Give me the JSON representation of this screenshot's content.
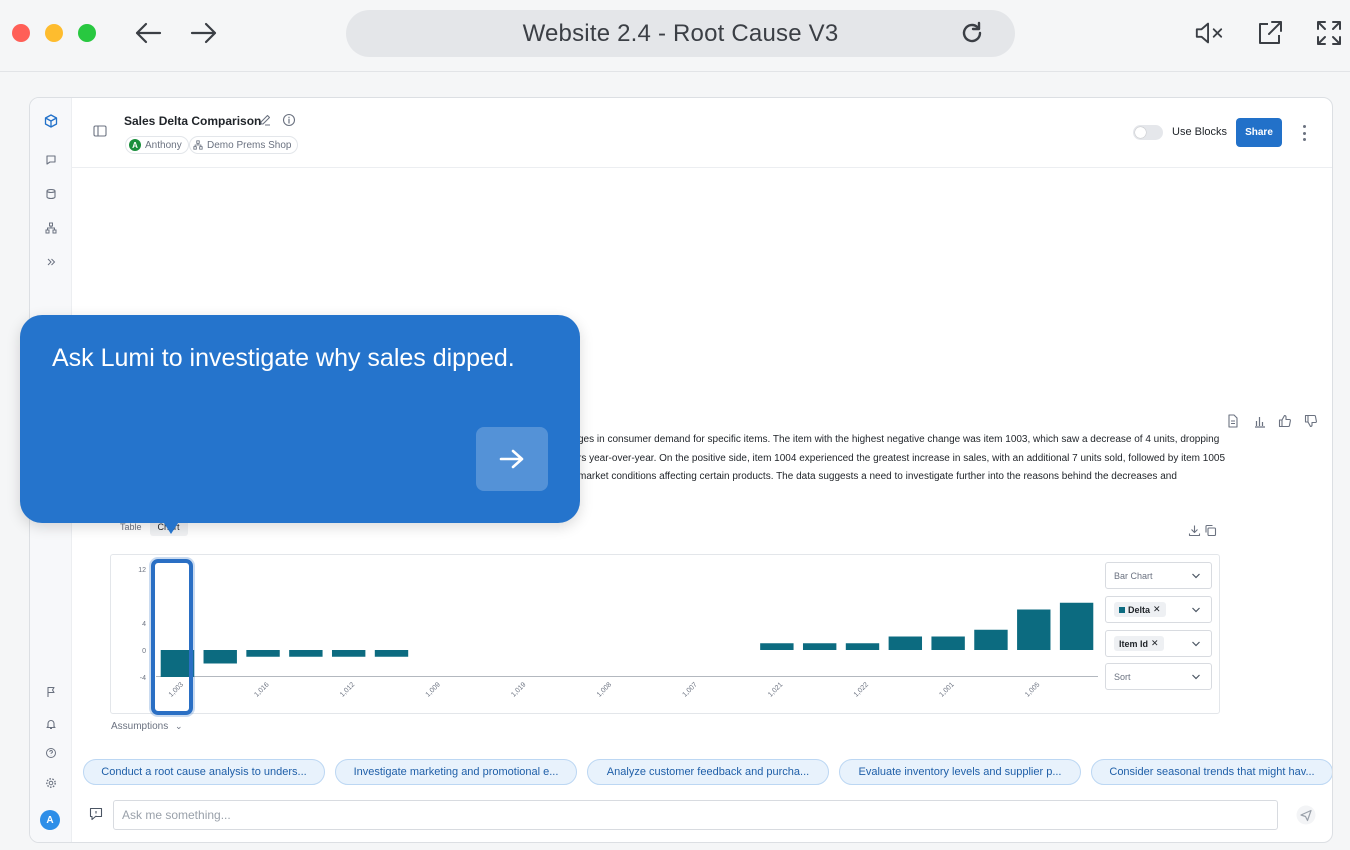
{
  "browser": {
    "title": "Website 2.4 - Root Cause V3"
  },
  "header": {
    "doc_title": "Sales Delta Comparison",
    "user_chip": "Anthony",
    "user_initial": "A",
    "shop_chip": "Demo Prems Shop",
    "use_blocks_label": "Use Blocks",
    "use_blocks_on": false,
    "share_label": "Share"
  },
  "summary": {
    "lines": [
      "ges in consumer demand for specific items. The item with the highest negative change was item 1003, which saw a decrease of 4 units, dropping",
      "rs year-over-year. On the positive side, item 1004 experienced the greatest increase in sales, with an additional 7 units sold, followed by item 1005",
      "market conditions affecting certain products. The data suggests a need to investigate further into the reasons behind the decreases and"
    ]
  },
  "view_tabs": [
    "Table",
    "Chart"
  ],
  "chart_controls": {
    "chart_type": "Bar Chart",
    "measure": "Delta",
    "dimension": "Item Id",
    "sort": "Sort"
  },
  "chart_data": {
    "type": "bar",
    "categories": [
      "1,003",
      "",
      "1,016",
      "",
      "1,012",
      "",
      "1,009",
      "",
      "1,019",
      "",
      "1,008",
      "",
      "1,007",
      "",
      "1,021",
      "",
      "1,022",
      "",
      "1,001",
      "",
      "1,005",
      ""
    ],
    "series": [
      {
        "name": "Delta",
        "values": [
          -4,
          -2,
          -1,
          -1,
          -1,
          -1,
          0,
          0,
          0,
          0,
          0,
          0,
          0,
          0,
          1,
          1,
          1,
          2,
          2,
          3,
          6,
          7
        ]
      }
    ],
    "yticks": [
      12,
      4,
      0,
      -4
    ],
    "ylim": [
      -4,
      12
    ],
    "color": "#0c6b80",
    "grid": false
  },
  "assumptions_label": "Assumptions",
  "suggestions": [
    "Conduct a root cause analysis to unders...",
    "Investigate marketing and promotional e...",
    "Analyze customer feedback and purcha...",
    "Evaluate inventory levels and supplier p...",
    "Consider seasonal trends that might hav..."
  ],
  "ask": {
    "placeholder": "Ask me something..."
  },
  "callout": {
    "message": "Ask Lumi to investigate why sales dipped."
  },
  "rail_avatar_initial": "A"
}
